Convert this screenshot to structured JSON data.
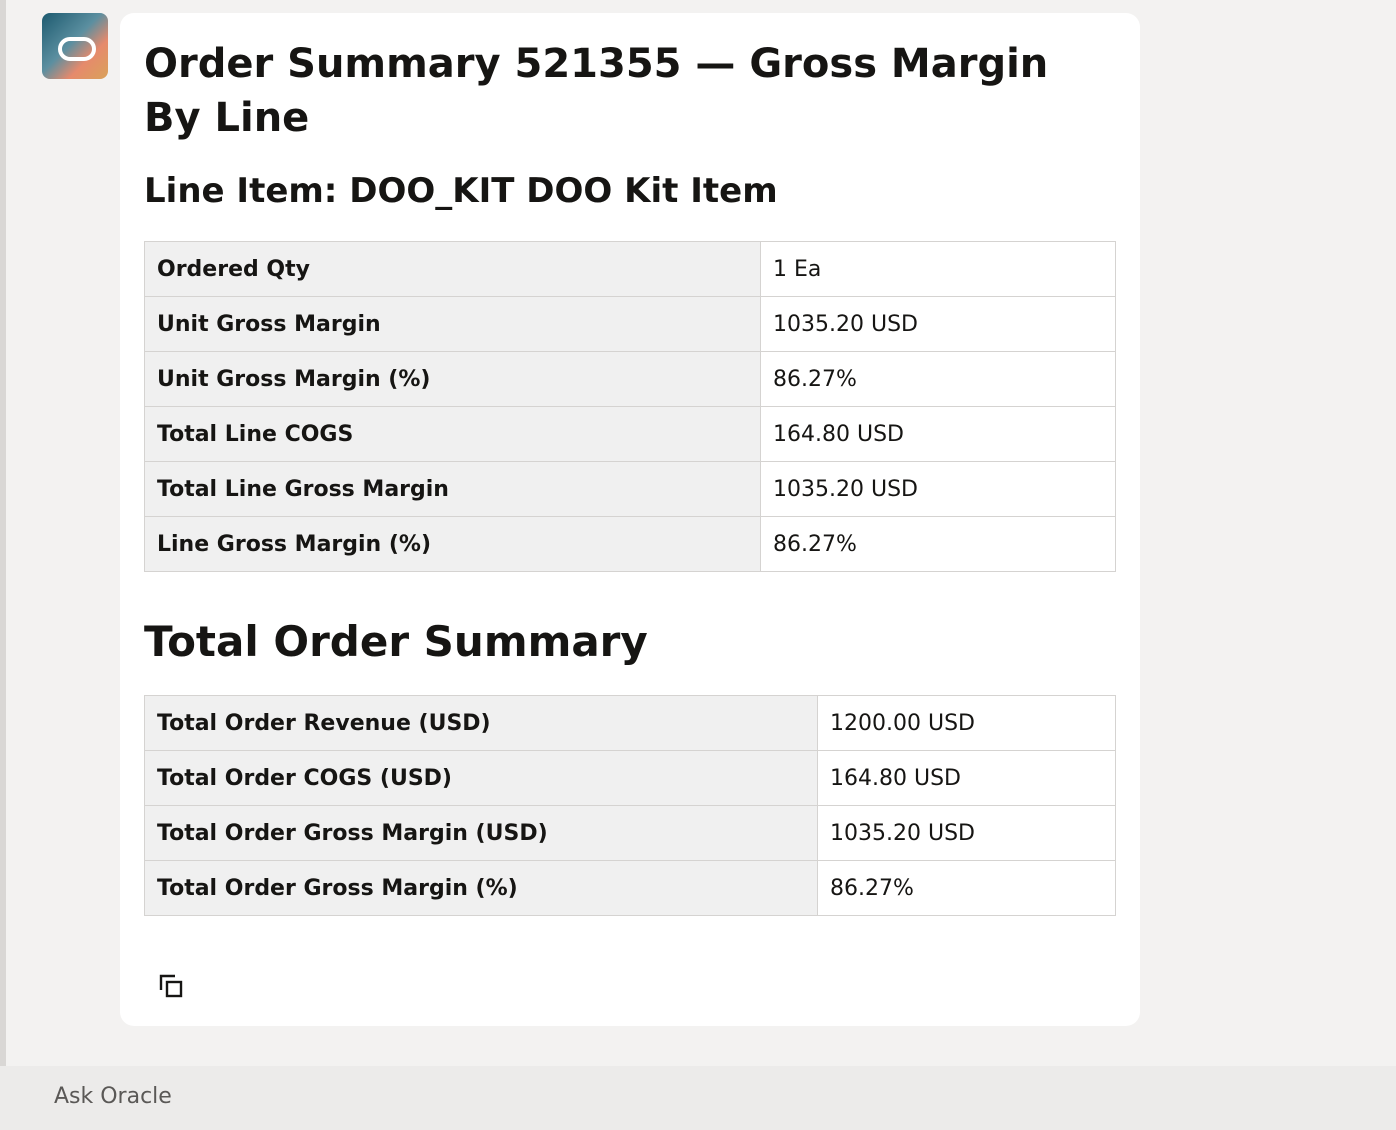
{
  "message": {
    "title": "Order Summary 521355 — Gross Margin By Line",
    "line_heading": "Line Item: DOO_KIT DOO Kit Item",
    "line_table": {
      "rows": [
        [
          "Ordered Qty",
          "1 Ea"
        ],
        [
          "Unit Gross Margin",
          "1035.20 USD"
        ],
        [
          "Unit Gross Margin (%)",
          "86.27%"
        ],
        [
          "Total Line COGS",
          "164.80 USD"
        ],
        [
          "Total Line Gross Margin",
          "1035.20 USD"
        ],
        [
          "Line Gross Margin (%)",
          "86.27%"
        ]
      ]
    },
    "total_heading": "Total Order Summary",
    "total_table": {
      "rows": [
        [
          "Total Order Revenue (USD)",
          "1200.00 USD"
        ],
        [
          "Total Order COGS (USD)",
          "164.80 USD"
        ],
        [
          "Total Order Gross Margin (USD)",
          "1035.20 USD"
        ],
        [
          "Total Order Gross Margin (%)",
          "86.27%"
        ]
      ]
    }
  },
  "input": {
    "placeholder": "Ask Oracle"
  }
}
